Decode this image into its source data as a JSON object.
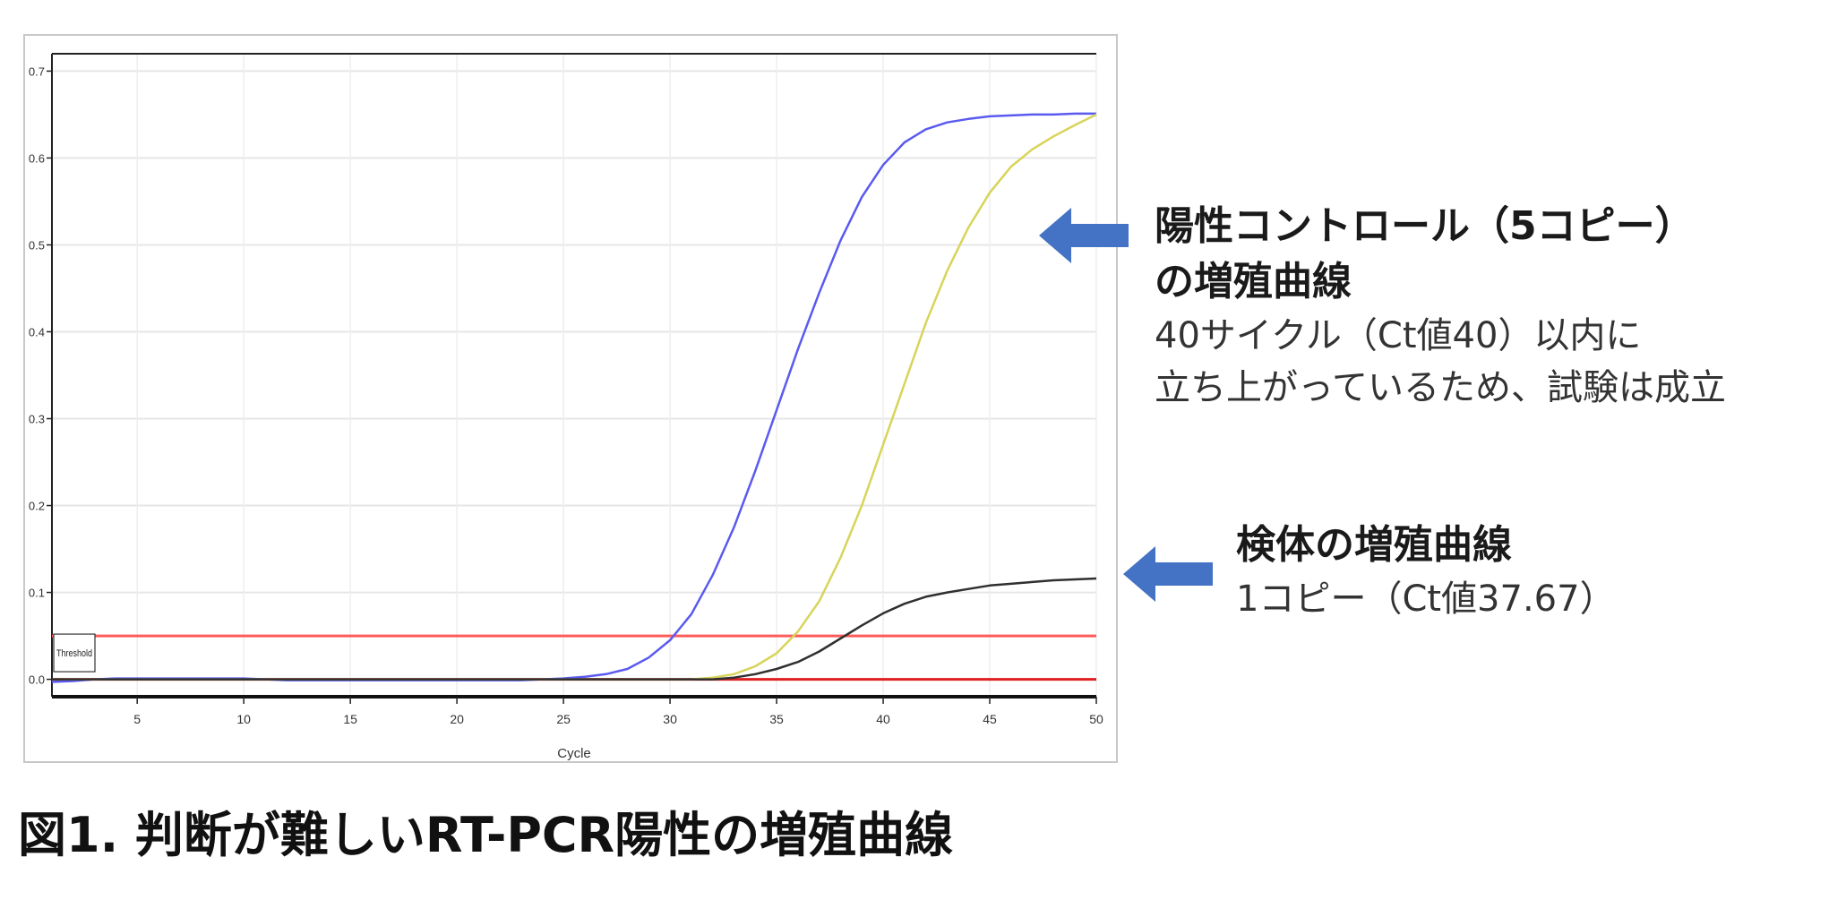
{
  "chart_data": {
    "type": "line",
    "xlabel": "Cycle",
    "ylabel": "",
    "xlim": [
      1,
      50
    ],
    "ylim": [
      -0.02,
      0.72
    ],
    "x_ticks": [
      5,
      10,
      15,
      20,
      25,
      30,
      35,
      40,
      45,
      50
    ],
    "y_ticks": [
      0.0,
      0.1,
      0.2,
      0.3,
      0.4,
      0.5,
      0.6,
      0.7
    ],
    "y_tick_labels": [
      "0.0",
      "0.1",
      "0.2",
      "0.3",
      "0.4",
      "0.5",
      "0.6",
      "0.7"
    ],
    "grid": true,
    "threshold": {
      "label": "Threshold",
      "value": 0.05,
      "color": "#ff5a5a"
    },
    "baseline": {
      "value": 0.0,
      "color": "#e02020"
    },
    "series": [
      {
        "color": "#5a5af0",
        "x": [
          1,
          2,
          3,
          4,
          5,
          6,
          7,
          8,
          9,
          10,
          11,
          12,
          13,
          14,
          15,
          16,
          17,
          18,
          19,
          20,
          21,
          22,
          23,
          24,
          25,
          26,
          27,
          28,
          29,
          30,
          31,
          32,
          33,
          34,
          35,
          36,
          37,
          38,
          39,
          40,
          41,
          42,
          43,
          44,
          45,
          46,
          47,
          48,
          49,
          50
        ],
        "y": [
          -0.003,
          -0.002,
          0.0,
          0.001,
          0.001,
          0.001,
          0.001,
          0.001,
          0.001,
          0.001,
          0.0,
          -0.001,
          -0.001,
          -0.001,
          -0.001,
          -0.001,
          -0.001,
          -0.001,
          -0.001,
          -0.001,
          -0.001,
          -0.001,
          -0.001,
          0.0,
          0.001,
          0.003,
          0.006,
          0.012,
          0.025,
          0.045,
          0.075,
          0.12,
          0.175,
          0.24,
          0.31,
          0.38,
          0.445,
          0.505,
          0.555,
          0.592,
          0.618,
          0.633,
          0.641,
          0.645,
          0.648,
          0.649,
          0.65,
          0.65,
          0.651,
          0.651
        ]
      },
      {
        "color": "#d8d45a",
        "x": [
          1,
          2,
          3,
          4,
          5,
          6,
          7,
          8,
          9,
          10,
          11,
          12,
          13,
          14,
          15,
          16,
          17,
          18,
          19,
          20,
          21,
          22,
          23,
          24,
          25,
          26,
          27,
          28,
          29,
          30,
          31,
          32,
          33,
          34,
          35,
          36,
          37,
          38,
          39,
          40,
          41,
          42,
          43,
          44,
          45,
          46,
          47,
          48,
          49,
          50
        ],
        "y": [
          0.0,
          0.0,
          0.0,
          0.0,
          0.0,
          0.0,
          0.0,
          0.0,
          0.0,
          0.0,
          0.0,
          0.0,
          0.0,
          0.0,
          0.0,
          0.0,
          0.0,
          0.0,
          0.0,
          0.0,
          0.0,
          0.0,
          0.0,
          0.0,
          0.0,
          0.0,
          0.0,
          0.0,
          0.0,
          0.0,
          0.0,
          0.002,
          0.006,
          0.015,
          0.03,
          0.055,
          0.09,
          0.14,
          0.2,
          0.27,
          0.34,
          0.41,
          0.47,
          0.52,
          0.56,
          0.59,
          0.61,
          0.625,
          0.638,
          0.65
        ]
      },
      {
        "color": "#303030",
        "x": [
          1,
          2,
          3,
          4,
          5,
          6,
          7,
          8,
          9,
          10,
          11,
          12,
          13,
          14,
          15,
          16,
          17,
          18,
          19,
          20,
          21,
          22,
          23,
          24,
          25,
          26,
          27,
          28,
          29,
          30,
          31,
          32,
          33,
          34,
          35,
          36,
          37,
          38,
          39,
          40,
          41,
          42,
          43,
          44,
          45,
          46,
          47,
          48,
          49,
          50
        ],
        "y": [
          0.0,
          0.0,
          0.0,
          0.0,
          0.0,
          0.0,
          0.0,
          0.0,
          0.0,
          0.0,
          0.0,
          0.0,
          0.0,
          0.0,
          0.0,
          0.0,
          0.0,
          0.0,
          0.0,
          0.0,
          0.0,
          0.0,
          0.0,
          0.0,
          0.0,
          0.0,
          0.0,
          0.0,
          0.0,
          0.0,
          0.0,
          0.0,
          0.002,
          0.006,
          0.012,
          0.02,
          0.032,
          0.047,
          0.062,
          0.076,
          0.087,
          0.095,
          0.1,
          0.104,
          0.108,
          0.11,
          0.112,
          0.114,
          0.115,
          0.116
        ]
      }
    ]
  },
  "annotations": {
    "positive_control": {
      "title_line1": "陽性コントロール（5コピー）",
      "title_line2": "の増殖曲線",
      "body_line1": "40サイクル（Ct値40）以内に",
      "body_line2": "立ち上がっているため、試験は成立",
      "arrow_color": "#4472c4"
    },
    "sample": {
      "title": "検体の増殖曲線",
      "body": "1コピー（Ct値37.67）",
      "arrow_color": "#4472c4"
    }
  },
  "caption": "図1. 判断が難しいRT-PCR陽性の増殖曲線"
}
